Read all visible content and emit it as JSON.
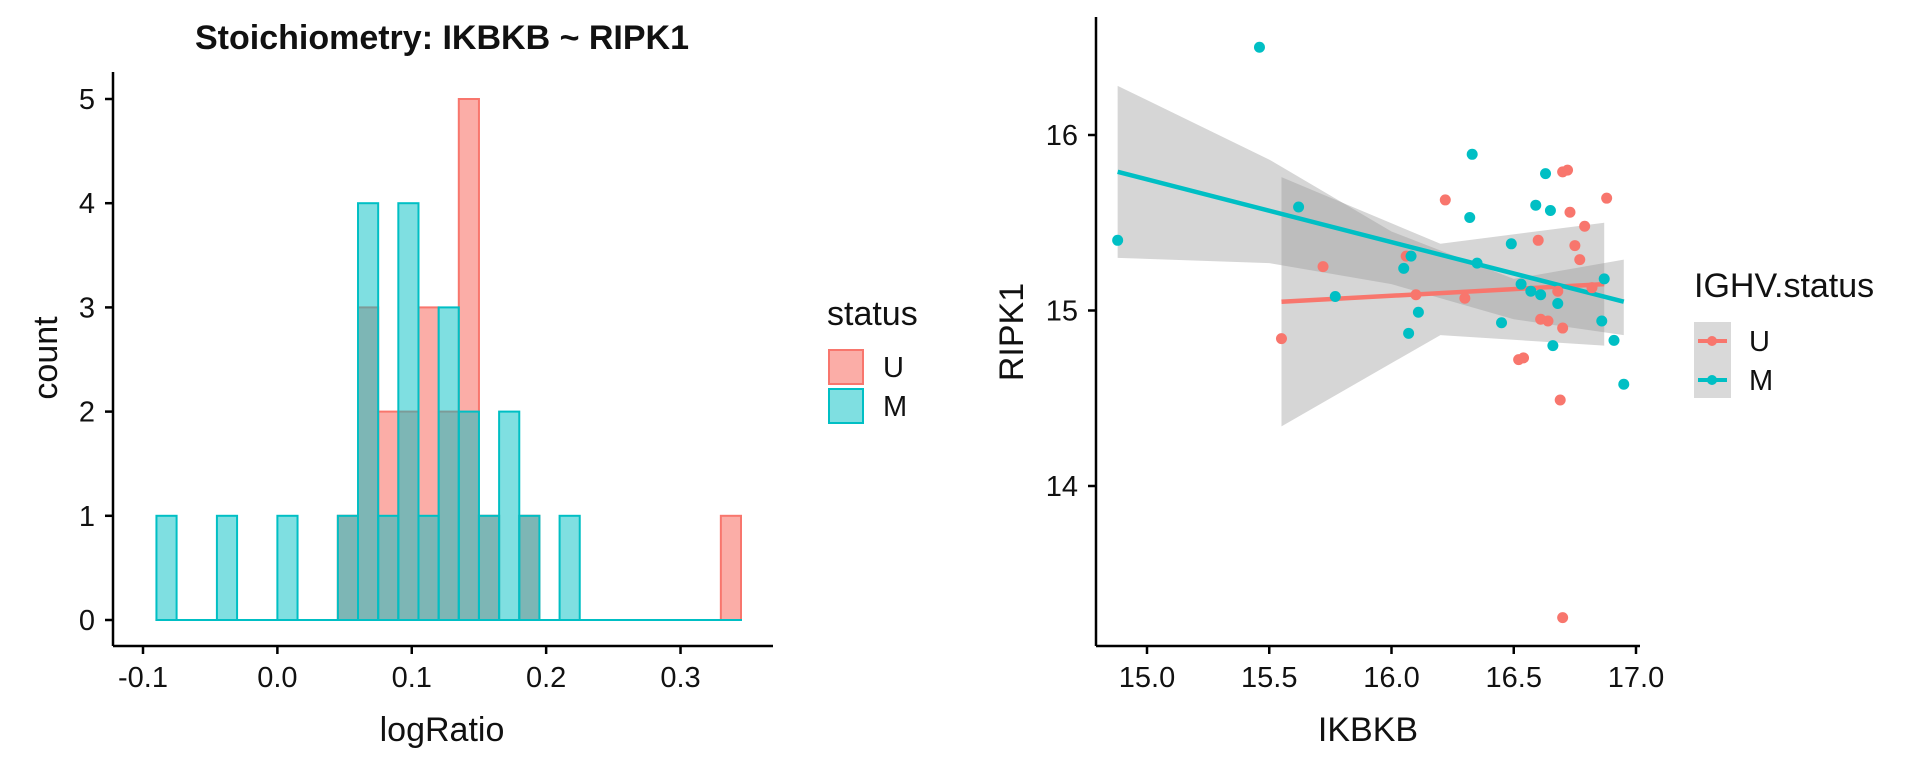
{
  "figure": {
    "panels": [
      "histogram",
      "scatter"
    ]
  },
  "colors": {
    "U": "#F8766D",
    "M": "#00BFC4",
    "band": "#999999",
    "axis": "#000000"
  },
  "chart_data": [
    {
      "type": "bar",
      "subtype": "histogram",
      "title": "Stoichiometry: IKBKB ~ RIPK1",
      "xlabel": "logRatio",
      "ylabel": "count",
      "binwidth": 0.015,
      "xlim": [
        -0.1,
        0.345
      ],
      "ylim": [
        0,
        5
      ],
      "xticks": [
        -0.1,
        0.0,
        0.1,
        0.2,
        0.3
      ],
      "xtick_labels": [
        "-0.1",
        "0.0",
        "0.1",
        "0.2",
        "0.3"
      ],
      "yticks": [
        0,
        1,
        2,
        3,
        4,
        5
      ],
      "ytick_labels": [
        "0",
        "1",
        "2",
        "3",
        "4",
        "5"
      ],
      "bin_centers": [
        -0.0825,
        -0.0675,
        -0.0525,
        -0.0375,
        -0.0225,
        -0.0075,
        0.0075,
        0.0225,
        0.0375,
        0.0525,
        0.0675,
        0.0825,
        0.0975,
        0.1125,
        0.1275,
        0.1425,
        0.1575,
        0.1725,
        0.1875,
        0.2025,
        0.2175,
        0.2325,
        0.2475,
        0.2625,
        0.2775,
        0.2925,
        0.3075,
        0.3225,
        0.3375
      ],
      "legend": {
        "title": "status",
        "position": "right",
        "entries": [
          "U",
          "M"
        ]
      },
      "series": [
        {
          "name": "U",
          "values": [
            0,
            0,
            0,
            0,
            0,
            0,
            0,
            0,
            0,
            1,
            3,
            2,
            2,
            3,
            2,
            5,
            1,
            0,
            1,
            0,
            0,
            0,
            0,
            0,
            0,
            0,
            0,
            0,
            1
          ]
        },
        {
          "name": "M",
          "values": [
            1,
            0,
            0,
            1,
            0,
            0,
            1,
            0,
            0,
            1,
            4,
            1,
            4,
            1,
            3,
            2,
            1,
            2,
            1,
            0,
            1,
            0,
            0,
            0,
            0,
            0,
            0,
            0,
            0
          ]
        }
      ]
    },
    {
      "type": "scatter",
      "xlabel": "IKBKB",
      "ylabel": "RIPK1",
      "xlim": [
        14.8,
        17.05
      ],
      "ylim": [
        13.1,
        16.65
      ],
      "xticks": [
        15.0,
        15.5,
        16.0,
        16.5,
        17.0
      ],
      "xtick_labels": [
        "15.0",
        "15.5",
        "16.0",
        "16.5",
        "17.0"
      ],
      "yticks": [
        14,
        15,
        16
      ],
      "ytick_labels": [
        "14",
        "15",
        "16"
      ],
      "legend": {
        "title": "IGHV.status",
        "position": "right",
        "entries": [
          "U",
          "M"
        ]
      },
      "series": [
        {
          "name": "U",
          "points": [
            [
              15.55,
              14.84
            ],
            [
              15.72,
              15.25
            ],
            [
              16.06,
              15.31
            ],
            [
              16.1,
              15.09
            ],
            [
              16.22,
              15.63
            ],
            [
              16.3,
              15.07
            ],
            [
              16.52,
              14.72
            ],
            [
              16.54,
              14.73
            ],
            [
              16.6,
              15.4
            ],
            [
              16.61,
              14.95
            ],
            [
              16.64,
              14.94
            ],
            [
              16.68,
              15.11
            ],
            [
              16.69,
              14.49
            ],
            [
              16.7,
              14.9
            ],
            [
              16.7,
              15.79
            ],
            [
              16.72,
              15.8
            ],
            [
              16.73,
              15.56
            ],
            [
              16.75,
              15.37
            ],
            [
              16.77,
              15.29
            ],
            [
              16.79,
              15.48
            ],
            [
              16.82,
              15.13
            ],
            [
              16.88,
              15.64
            ],
            [
              16.7,
              13.25
            ]
          ],
          "fit": {
            "x": [
              15.55,
              16.87
            ],
            "y": [
              15.05,
              15.15
            ],
            "ci": {
              "x": [
                15.55,
                16.2,
                16.87
              ],
              "lower": [
                14.34,
                14.86,
                14.8
              ],
              "upper": [
                15.76,
                15.38,
                15.5
              ]
            }
          }
        },
        {
          "name": "M",
          "points": [
            [
              14.88,
              15.4
            ],
            [
              15.46,
              16.5
            ],
            [
              15.62,
              15.59
            ],
            [
              15.77,
              15.08
            ],
            [
              16.05,
              15.24
            ],
            [
              16.07,
              14.87
            ],
            [
              16.08,
              15.31
            ],
            [
              16.11,
              14.99
            ],
            [
              16.32,
              15.53
            ],
            [
              16.33,
              15.89
            ],
            [
              16.35,
              15.27
            ],
            [
              16.45,
              14.93
            ],
            [
              16.49,
              15.38
            ],
            [
              16.53,
              15.15
            ],
            [
              16.57,
              15.11
            ],
            [
              16.59,
              15.6
            ],
            [
              16.61,
              15.09
            ],
            [
              16.63,
              15.78
            ],
            [
              16.65,
              15.57
            ],
            [
              16.66,
              14.8
            ],
            [
              16.68,
              15.04
            ],
            [
              16.86,
              14.94
            ],
            [
              16.87,
              15.18
            ],
            [
              16.91,
              14.83
            ],
            [
              16.95,
              14.58
            ]
          ],
          "fit": {
            "x": [
              14.88,
              16.95
            ],
            "y": [
              15.79,
              15.05
            ],
            "ci": {
              "x": [
                14.88,
                15.5,
                16.0,
                16.5,
                16.95
              ],
              "lower": [
                15.3,
                15.27,
                15.15,
                14.95,
                14.86
              ],
              "upper": [
                16.28,
                15.86,
                15.45,
                15.18,
                15.29
              ]
            }
          }
        }
      ]
    }
  ]
}
